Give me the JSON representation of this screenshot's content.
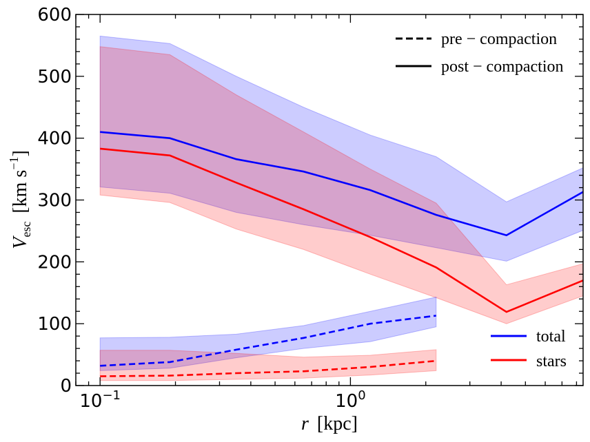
{
  "chart_data": {
    "type": "line",
    "xscale": "log",
    "xlim": [
      0.08,
      8.5
    ],
    "ylim": [
      0,
      600
    ],
    "xlabel": {
      "var": "r",
      "unit": "[kpc]"
    },
    "ylabel": {
      "var": "V",
      "sub": "esc",
      "unit_pre": "[km s",
      "unit_sup": "−1",
      "unit_post": "]"
    },
    "xticks": [
      {
        "value": 0.1,
        "base": "10",
        "exp": "−1"
      },
      {
        "value": 1.0,
        "base": "10",
        "exp": "0"
      }
    ],
    "yticks": [
      0,
      100,
      200,
      300,
      400,
      500,
      600
    ],
    "series": [
      {
        "name": "total post-compaction",
        "color": "#0000ff",
        "style": "solid",
        "x": [
          0.1,
          0.19,
          0.35,
          0.65,
          1.2,
          2.2,
          4.2,
          8.5
        ],
        "y": [
          410,
          400,
          366,
          346,
          316,
          276,
          243,
          313
        ],
        "band_upper": [
          565,
          553,
          500,
          450,
          405,
          370,
          297,
          352
        ],
        "band_lower": [
          321,
          311,
          280,
          260,
          243,
          223,
          201,
          251
        ]
      },
      {
        "name": "stars post-compaction",
        "color": "#ff0000",
        "style": "solid",
        "x": [
          0.1,
          0.19,
          0.35,
          0.65,
          1.2,
          2.2,
          4.2,
          8.5
        ],
        "y": [
          383,
          372,
          328,
          285,
          240,
          191,
          119,
          170
        ],
        "band_upper": [
          548,
          535,
          470,
          410,
          350,
          295,
          163,
          197
        ],
        "band_lower": [
          308,
          296,
          253,
          220,
          180,
          142,
          100,
          145
        ]
      },
      {
        "name": "total pre-compaction",
        "color": "#0000ff",
        "style": "dashed",
        "x": [
          0.1,
          0.19,
          0.35,
          0.65,
          1.2,
          2.2
        ],
        "y": [
          32,
          38,
          58,
          77,
          100,
          113
        ],
        "band_upper": [
          77,
          78,
          83,
          97,
          120,
          143
        ],
        "band_lower": [
          24,
          28,
          45,
          60,
          71,
          95
        ]
      },
      {
        "name": "stars pre-compaction",
        "color": "#ff0000",
        "style": "dashed",
        "x": [
          0.1,
          0.19,
          0.35,
          0.65,
          1.2,
          2.2
        ],
        "y": [
          15,
          16,
          20,
          23,
          30,
          40
        ],
        "band_upper": [
          57,
          57,
          52,
          46,
          49,
          58
        ],
        "band_lower": [
          8,
          8,
          10,
          12,
          17,
          24
        ]
      }
    ],
    "legend_linestyle": {
      "placement": "top-right",
      "entries": [
        {
          "label": "pre − compaction",
          "style": "dashed"
        },
        {
          "label": "post − compaction",
          "style": "solid"
        }
      ]
    },
    "legend_color": {
      "placement": "bottom-right",
      "entries": [
        {
          "label": "total",
          "color": "#0000ff"
        },
        {
          "label": "stars",
          "color": "#ff0000"
        }
      ]
    },
    "band_colors": {
      "total": "#0000ff",
      "stars": "#ff0000"
    }
  }
}
